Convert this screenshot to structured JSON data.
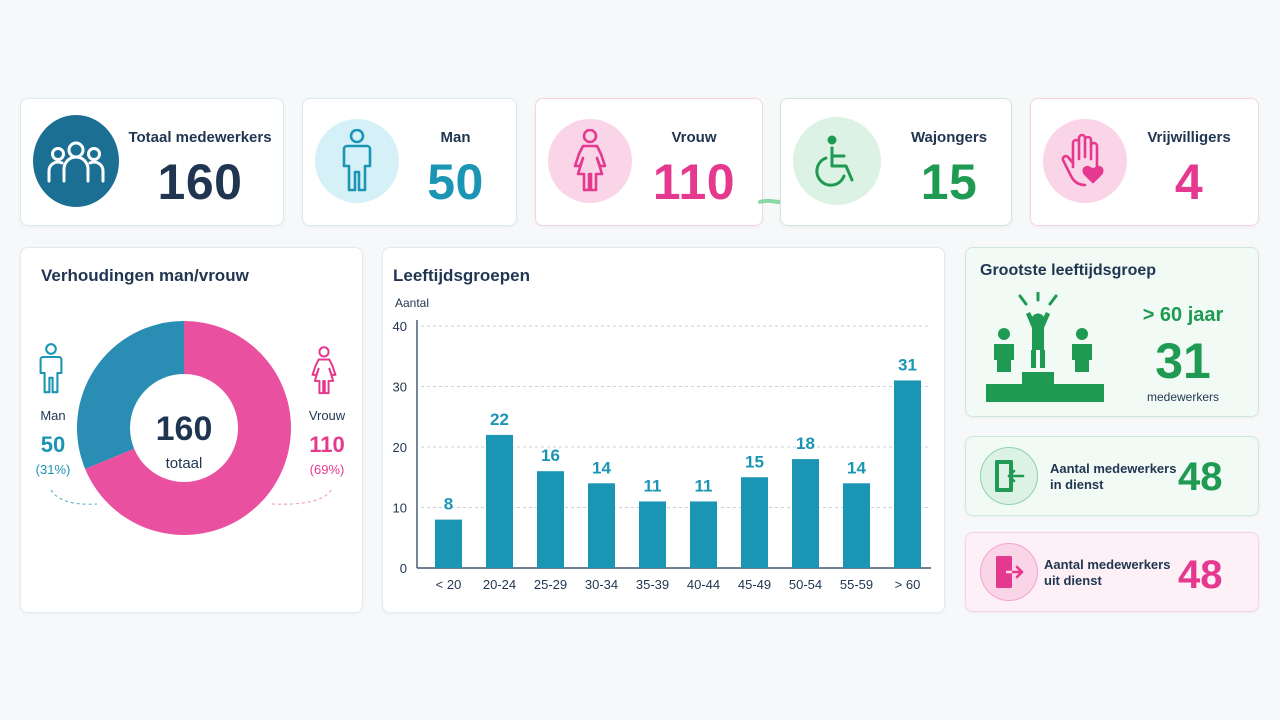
{
  "colors": {
    "navy": "#1f3550",
    "teal": "#1b95b4",
    "pink": "#e5398f",
    "green": "#1e9a52",
    "dark_teal": "#1a6f93"
  },
  "kpis": {
    "total": {
      "label": "Totaal medewerkers",
      "value": "160",
      "icon": "people-group-icon"
    },
    "man": {
      "label": "Man",
      "value": "50",
      "icon": "man-icon"
    },
    "vrouw": {
      "label": "Vrouw",
      "value": "110",
      "icon": "woman-icon"
    },
    "wajongers": {
      "label": "Wajongers",
      "value": "15",
      "icon": "wheelchair-icon"
    },
    "vrijwilligers": {
      "label": "Vrijwilligers",
      "value": "4",
      "icon": "hand-heart-icon"
    }
  },
  "ratio": {
    "title": "Verhoudingen man/vrouw",
    "center_value": "160",
    "center_label": "totaal",
    "man": {
      "label": "Man",
      "value": "50",
      "pct": "(31%)",
      "share": 0.3125
    },
    "vrouw": {
      "label": "Vrouw",
      "value": "110",
      "pct": "(69%)",
      "share": 0.6875
    }
  },
  "chart_data": {
    "type": "bar",
    "title": "Leeftijdsgroepen",
    "ylabel": "Aantal",
    "xlabel": "",
    "categories": [
      "< 20",
      "20-24",
      "25-29",
      "30-34",
      "35-39",
      "40-44",
      "45-49",
      "50-54",
      "55-59",
      "> 60"
    ],
    "values": [
      8,
      22,
      16,
      14,
      11,
      11,
      15,
      18,
      14,
      31
    ],
    "ylim": [
      0,
      40
    ],
    "yticks": [
      0,
      10,
      20,
      30,
      40
    ],
    "grid": true,
    "color": "#1b95b4"
  },
  "largest_group": {
    "title": "Grootste leeftijdsgroep",
    "group": "> 60 jaar",
    "value": "31",
    "unit": "medewerkers",
    "icon": "podium-icon"
  },
  "in_dienst": {
    "label_line1": "Aantal medewerkers",
    "label_line2": "in dienst",
    "value": "48",
    "icon": "door-enter-icon"
  },
  "uit_dienst": {
    "label_line1": "Aantal medewerkers",
    "label_line2": "uit dienst",
    "value": "48",
    "icon": "door-exit-icon"
  }
}
